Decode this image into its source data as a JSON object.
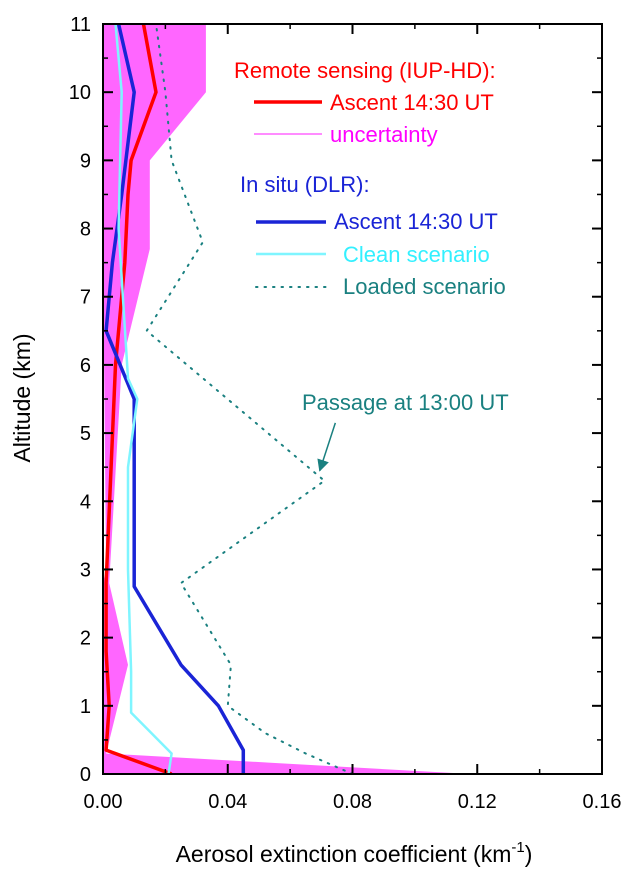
{
  "chart_data": {
    "type": "line",
    "xlabel": "Aerosol extinction coefficient (km",
    "xlabel_sup": "-1",
    "xlabel_end": ")",
    "ylabel": "Altitude (km)",
    "xlim": [
      0,
      0.16
    ],
    "ylim": [
      0,
      11
    ],
    "x_ticks": [
      "0.00",
      "0.04",
      "0.08",
      "0.12",
      "0.16"
    ],
    "x_tick_values": [
      0,
      0.04,
      0.08,
      0.12,
      0.16
    ],
    "y_ticks": [
      "0",
      "1",
      "2",
      "3",
      "4",
      "5",
      "6",
      "7",
      "8",
      "9",
      "10",
      "11"
    ],
    "y_tick_values": [
      0,
      1,
      2,
      3,
      4,
      5,
      6,
      7,
      8,
      9,
      10,
      11
    ],
    "grid": false,
    "legend": {
      "group1_title": "Remote sensing (IUP-HD):",
      "group2_title": "In situ (DLR):"
    },
    "uncertainty_band": {
      "name": "uncertainty",
      "color": "#ff66ff",
      "right": [
        [
          0.118,
          0
        ],
        [
          0.001,
          0.3
        ],
        [
          0.008,
          1.6
        ],
        [
          0.002,
          2.8
        ],
        [
          0.006,
          6.0
        ],
        [
          0.015,
          7.7
        ],
        [
          0.015,
          9.0
        ],
        [
          0.033,
          10.0
        ],
        [
          0.033,
          11.0
        ]
      ],
      "left": [
        [
          0.0,
          11.0
        ],
        [
          0.0,
          7.6
        ],
        [
          0.001,
          3.0
        ],
        [
          0.0,
          2.8
        ],
        [
          0.0,
          0.2
        ],
        [
          0.0,
          0
        ]
      ]
    },
    "series": [
      {
        "name": "Ascent 14:30 UT",
        "group": "remote",
        "color": "#ff0000",
        "style": "solid",
        "width": 3.5,
        "points": [
          [
            0.022,
            0
          ],
          [
            0.001,
            0.35
          ],
          [
            0.002,
            1.0
          ],
          [
            0.001,
            1.8
          ],
          [
            0.001,
            2.8
          ],
          [
            0.004,
            6.0
          ],
          [
            0.007,
            7.5
          ],
          [
            0.008,
            8.5
          ],
          [
            0.009,
            9.0
          ],
          [
            0.017,
            10.0
          ],
          [
            0.013,
            11.0
          ]
        ]
      },
      {
        "name": "Ascent 14:30 UT",
        "group": "insitu",
        "color": "#1a24d6",
        "style": "solid",
        "width": 3.5,
        "points": [
          [
            0.045,
            0
          ],
          [
            0.045,
            0.35
          ],
          [
            0.037,
            1.0
          ],
          [
            0.025,
            1.6
          ],
          [
            0.01,
            2.75
          ],
          [
            0.01,
            3.5
          ],
          [
            0.01,
            5.5
          ],
          [
            0.001,
            6.5
          ],
          [
            0.003,
            7.5
          ],
          [
            0.006,
            8.5
          ],
          [
            0.01,
            10.0
          ],
          [
            0.005,
            11.0
          ]
        ]
      },
      {
        "name": "Clean scenario",
        "group": "insitu",
        "color": "#7ff5ff",
        "style": "solid",
        "width": 2.5,
        "points": [
          [
            0.021,
            0
          ],
          [
            0.022,
            0.3
          ],
          [
            0.009,
            0.9
          ],
          [
            0.009,
            1.5
          ],
          [
            0.008,
            3.0
          ],
          [
            0.008,
            4.5
          ],
          [
            0.011,
            5.5
          ],
          [
            0.008,
            5.8
          ],
          [
            0.005,
            8.0
          ],
          [
            0.006,
            10.0
          ],
          [
            0.004,
            11.0
          ]
        ]
      },
      {
        "name": "Loaded scenario",
        "group": "insitu",
        "color": "#1a8080",
        "style": "dotted",
        "width": 2,
        "points": [
          [
            0.08,
            0
          ],
          [
            0.065,
            0.3
          ],
          [
            0.052,
            0.6
          ],
          [
            0.04,
            1.0
          ],
          [
            0.041,
            1.6
          ],
          [
            0.025,
            2.8
          ],
          [
            0.071,
            4.3
          ],
          [
            0.014,
            6.5
          ],
          [
            0.032,
            7.8
          ],
          [
            0.022,
            9.0
          ],
          [
            0.02,
            10.0
          ],
          [
            0.017,
            11.0
          ]
        ]
      }
    ],
    "legend_entries": [
      {
        "label": "Ascent 14:30 UT",
        "color": "#ff0000",
        "text_color": "#ff0000",
        "style": "solid",
        "width": 3.5
      },
      {
        "label": "uncertainty",
        "color": "#ff66ff",
        "text_color": "#ff00ff",
        "style": "solid",
        "width": 1.5
      },
      {
        "label": "Ascent 14:30 UT",
        "color": "#1a24d6",
        "text_color": "#1a24d6",
        "style": "solid",
        "width": 3.5
      },
      {
        "label": "Clean scenario",
        "color": "#7ff5ff",
        "text_color": "#33f0ff",
        "style": "solid",
        "width": 2.5
      },
      {
        "label": "Loaded scenario",
        "color": "#1a8080",
        "text_color": "#1a8080",
        "style": "dotted",
        "width": 2
      }
    ],
    "annotation": {
      "text": "Passage at 13:00 UT",
      "color": "#1a8080",
      "arrow_to": [
        0.0695,
        4.45
      ],
      "arrow_from": [
        0.0745,
        5.15
      ]
    },
    "colors": {
      "remote_title": "#ff0000",
      "insitu_title": "#1a24d6"
    }
  }
}
